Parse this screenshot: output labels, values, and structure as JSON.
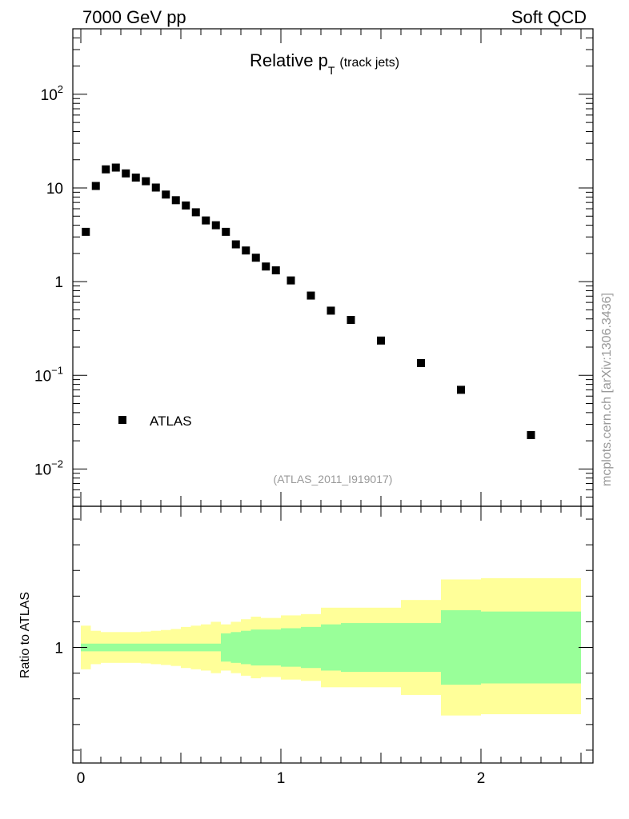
{
  "header": {
    "left": "7000 GeV pp",
    "right": "Soft QCD"
  },
  "side_label": "mcplots.cern.ch [arXiv:1306.3436]",
  "chart_data": [
    {
      "type": "scatter",
      "title_main": "Relative p",
      "title_sub": "T",
      "title_suffix": "(track jets)",
      "analysis_tag": "(ATLAS_2011_I919017)",
      "yscale": "log",
      "xlim": [
        -0.04,
        2.56
      ],
      "ylim": [
        0.004,
        500
      ],
      "y_ticks": [
        {
          "v": 0.01,
          "base": "10",
          "exp": "−2"
        },
        {
          "v": 0.1,
          "base": "10",
          "exp": "−1"
        },
        {
          "v": 1,
          "base": "1",
          "exp": ""
        },
        {
          "v": 10,
          "base": "10",
          "exp": ""
        },
        {
          "v": 100,
          "base": "10",
          "exp": "2"
        }
      ],
      "legend": {
        "position": "lower-left",
        "label": "ATLAS"
      },
      "series": [
        {
          "name": "ATLAS",
          "color": "#000000",
          "x": [
            0.025,
            0.075,
            0.125,
            0.175,
            0.225,
            0.275,
            0.325,
            0.375,
            0.425,
            0.475,
            0.525,
            0.575,
            0.625,
            0.675,
            0.725,
            0.775,
            0.825,
            0.875,
            0.925,
            0.975,
            1.05,
            1.15,
            1.25,
            1.35,
            1.5,
            1.7,
            1.9,
            2.25
          ],
          "y": [
            3.4,
            10.5,
            15.8,
            16.5,
            14.3,
            12.9,
            11.8,
            10.1,
            8.5,
            7.4,
            6.5,
            5.5,
            4.5,
            4.0,
            3.4,
            2.5,
            2.15,
            1.8,
            1.45,
            1.32,
            1.03,
            0.71,
            0.49,
            0.39,
            0.235,
            0.135,
            0.07,
            0.023
          ]
        }
      ]
    },
    {
      "type": "area",
      "ylabel": "Ratio to ATLAS",
      "xlim": [
        -0.04,
        2.56
      ],
      "ylim": [
        0.55,
        1.55
      ],
      "y_ticks": [
        {
          "v": 1,
          "label": "1"
        }
      ],
      "x_ticks": [
        {
          "v": 0,
          "label": "0"
        },
        {
          "v": 1,
          "label": "1"
        },
        {
          "v": 2,
          "label": "2"
        }
      ],
      "bands": {
        "yellow_color": "#ffff99",
        "green_color": "#99ff99",
        "bins": [
          {
            "x0": 0.0,
            "x1": 0.05,
            "yellow": [
              0.915,
              1.085
            ],
            "green": [
              0.985,
              1.015
            ]
          },
          {
            "x0": 0.05,
            "x1": 0.1,
            "yellow": [
              0.935,
              1.065
            ],
            "green": [
              0.985,
              1.015
            ]
          },
          {
            "x0": 0.1,
            "x1": 0.15,
            "yellow": [
              0.94,
              1.06
            ],
            "green": [
              0.985,
              1.015
            ]
          },
          {
            "x0": 0.15,
            "x1": 0.2,
            "yellow": [
              0.94,
              1.06
            ],
            "green": [
              0.985,
              1.015
            ]
          },
          {
            "x0": 0.2,
            "x1": 0.25,
            "yellow": [
              0.94,
              1.06
            ],
            "green": [
              0.985,
              1.015
            ]
          },
          {
            "x0": 0.25,
            "x1": 0.3,
            "yellow": [
              0.94,
              1.06
            ],
            "green": [
              0.985,
              1.015
            ]
          },
          {
            "x0": 0.3,
            "x1": 0.35,
            "yellow": [
              0.938,
              1.062
            ],
            "green": [
              0.985,
              1.015
            ]
          },
          {
            "x0": 0.35,
            "x1": 0.4,
            "yellow": [
              0.935,
              1.065
            ],
            "green": [
              0.985,
              1.015
            ]
          },
          {
            "x0": 0.4,
            "x1": 0.45,
            "yellow": [
              0.932,
              1.068
            ],
            "green": [
              0.985,
              1.015
            ]
          },
          {
            "x0": 0.45,
            "x1": 0.5,
            "yellow": [
              0.928,
              1.072
            ],
            "green": [
              0.985,
              1.015
            ]
          },
          {
            "x0": 0.5,
            "x1": 0.55,
            "yellow": [
              0.92,
              1.08
            ],
            "green": [
              0.985,
              1.015
            ]
          },
          {
            "x0": 0.55,
            "x1": 0.6,
            "yellow": [
              0.915,
              1.085
            ],
            "green": [
              0.985,
              1.015
            ]
          },
          {
            "x0": 0.6,
            "x1": 0.65,
            "yellow": [
              0.91,
              1.09
            ],
            "green": [
              0.985,
              1.015
            ]
          },
          {
            "x0": 0.65,
            "x1": 0.7,
            "yellow": [
              0.9,
              1.1
            ],
            "green": [
              0.985,
              1.015
            ]
          },
          {
            "x0": 0.7,
            "x1": 0.75,
            "yellow": [
              0.91,
              1.09
            ],
            "green": [
              0.945,
              1.055
            ]
          },
          {
            "x0": 0.75,
            "x1": 0.8,
            "yellow": [
              0.9,
              1.1
            ],
            "green": [
              0.94,
              1.06
            ]
          },
          {
            "x0": 0.8,
            "x1": 0.85,
            "yellow": [
              0.89,
              1.11
            ],
            "green": [
              0.935,
              1.065
            ]
          },
          {
            "x0": 0.85,
            "x1": 0.9,
            "yellow": [
              0.88,
              1.12
            ],
            "green": [
              0.93,
              1.07
            ]
          },
          {
            "x0": 0.9,
            "x1": 0.95,
            "yellow": [
              0.885,
              1.115
            ],
            "green": [
              0.93,
              1.07
            ]
          },
          {
            "x0": 0.95,
            "x1": 1.0,
            "yellow": [
              0.885,
              1.115
            ],
            "green": [
              0.93,
              1.07
            ]
          },
          {
            "x0": 1.0,
            "x1": 1.1,
            "yellow": [
              0.875,
              1.125
            ],
            "green": [
              0.925,
              1.075
            ]
          },
          {
            "x0": 1.1,
            "x1": 1.2,
            "yellow": [
              0.87,
              1.13
            ],
            "green": [
              0.92,
              1.08
            ]
          },
          {
            "x0": 1.2,
            "x1": 1.3,
            "yellow": [
              0.845,
              1.155
            ],
            "green": [
              0.91,
              1.09
            ]
          },
          {
            "x0": 1.3,
            "x1": 1.4,
            "yellow": [
              0.845,
              1.155
            ],
            "green": [
              0.905,
              1.095
            ]
          },
          {
            "x0": 1.4,
            "x1": 1.6,
            "yellow": [
              0.845,
              1.155
            ],
            "green": [
              0.905,
              1.095
            ]
          },
          {
            "x0": 1.6,
            "x1": 1.8,
            "yellow": [
              0.815,
              1.185
            ],
            "green": [
              0.905,
              1.095
            ]
          },
          {
            "x0": 1.8,
            "x1": 2.0,
            "yellow": [
              0.735,
              1.265
            ],
            "green": [
              0.855,
              1.145
            ]
          },
          {
            "x0": 2.0,
            "x1": 2.5,
            "yellow": [
              0.74,
              1.27
            ],
            "green": [
              0.86,
              1.14
            ]
          }
        ]
      }
    }
  ]
}
